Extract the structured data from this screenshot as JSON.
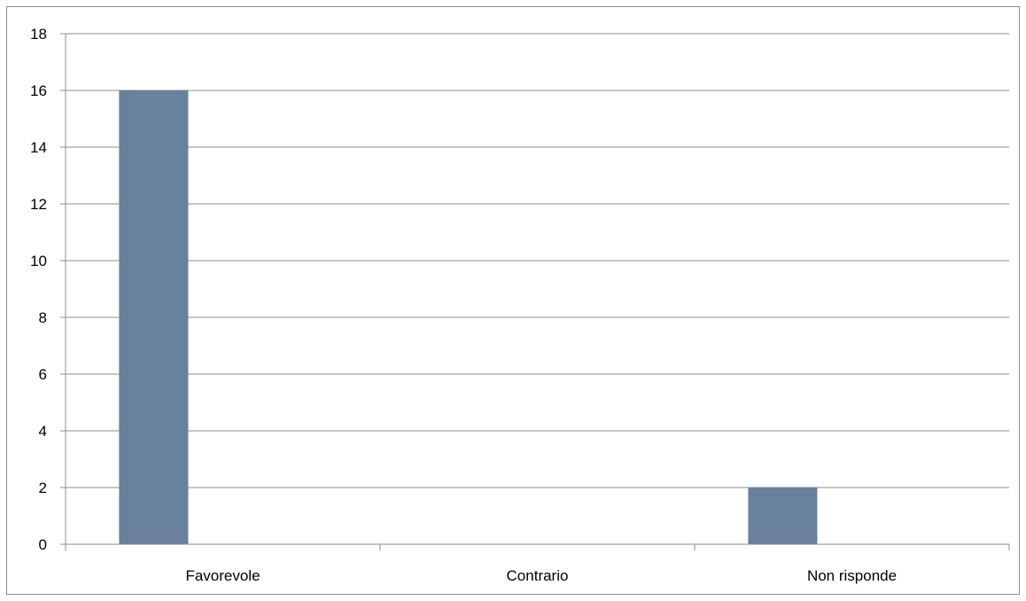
{
  "chart_data": {
    "type": "bar",
    "categories": [
      "Favorevole",
      "Contrario",
      "Non risponde"
    ],
    "values": [
      16,
      0,
      2
    ],
    "title": "",
    "xlabel": "",
    "ylabel": "",
    "ylim": [
      0,
      18
    ],
    "yticks": [
      0,
      2,
      4,
      6,
      8,
      10,
      12,
      14,
      16,
      18
    ],
    "grid": true,
    "legend": "none",
    "bar_color": "#6a819c",
    "grid_color": "#8c8c8c"
  }
}
